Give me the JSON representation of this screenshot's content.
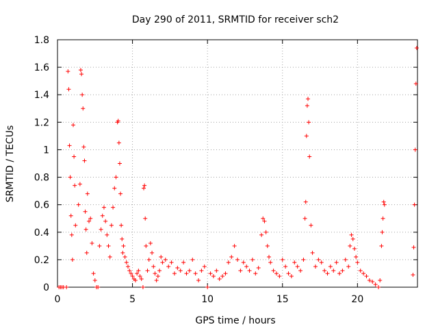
{
  "chart_data": {
    "type": "scatter",
    "title": "Day 290 of 2011, SRMTID for receiver sch2",
    "xlabel": "GPS time / hours",
    "ylabel": "SRMTID / TECUs",
    "xlim": [
      0,
      24
    ],
    "ylim": [
      0,
      1.8
    ],
    "xticks": [
      0,
      5,
      10,
      15,
      20
    ],
    "yticks": [
      0,
      0.2,
      0.4,
      0.6,
      0.8,
      1,
      1.2,
      1.4,
      1.6,
      1.8
    ],
    "ytick_labels": [
      "0",
      "0.2",
      "0.4",
      "0.6",
      "0.8",
      "1",
      "1.2",
      "1.4",
      "1.6",
      "1.8"
    ],
    "grid": true,
    "marker": "+",
    "color": "#ff0000",
    "x": [
      0.1,
      0.2,
      0.3,
      0.4,
      0.6,
      0.7,
      0.75,
      0.8,
      0.85,
      0.9,
      0.95,
      1.0,
      1.05,
      1.1,
      1.15,
      1.2,
      1.4,
      1.5,
      1.55,
      1.6,
      1.65,
      1.7,
      1.75,
      1.8,
      1.85,
      1.9,
      1.95,
      2.0,
      2.1,
      2.2,
      2.3,
      2.4,
      2.5,
      2.6,
      2.7,
      2.8,
      2.9,
      3.0,
      3.1,
      3.2,
      3.3,
      3.4,
      3.5,
      3.6,
      3.7,
      3.8,
      3.9,
      4.0,
      4.05,
      4.1,
      4.15,
      4.2,
      4.25,
      4.3,
      4.35,
      4.4,
      4.5,
      4.6,
      4.7,
      4.8,
      4.9,
      5.0,
      5.1,
      5.2,
      5.3,
      5.4,
      5.5,
      5.6,
      5.7,
      5.75,
      5.8,
      5.85,
      5.9,
      6.0,
      6.1,
      6.2,
      6.3,
      6.4,
      6.5,
      6.6,
      6.7,
      6.8,
      6.9,
      7.0,
      7.2,
      7.4,
      7.6,
      7.8,
      8.0,
      8.2,
      8.4,
      8.6,
      8.8,
      9.0,
      9.2,
      9.4,
      9.6,
      9.8,
      10.0,
      10.2,
      10.4,
      10.6,
      10.8,
      11.0,
      11.2,
      11.4,
      11.6,
      11.8,
      12.0,
      12.2,
      12.4,
      12.6,
      12.8,
      13.0,
      13.2,
      13.4,
      13.6,
      13.7,
      13.8,
      13.9,
      14.0,
      14.1,
      14.2,
      14.4,
      14.6,
      14.8,
      15.0,
      15.2,
      15.4,
      15.6,
      15.8,
      16.0,
      16.2,
      16.4,
      16.5,
      16.55,
      16.6,
      16.65,
      16.7,
      16.75,
      16.8,
      16.9,
      17.0,
      17.2,
      17.4,
      17.6,
      17.8,
      18.0,
      18.2,
      18.4,
      18.6,
      18.8,
      19.0,
      19.2,
      19.4,
      19.5,
      19.6,
      19.7,
      19.8,
      19.9,
      20.0,
      20.2,
      20.4,
      20.6,
      20.8,
      21.0,
      21.2,
      21.4,
      21.5,
      21.6,
      21.65,
      21.7,
      21.75,
      21.8,
      23.7,
      23.75,
      23.8,
      23.85,
      23.9,
      23.95
    ],
    "y": [
      0.0,
      0.0,
      0.0,
      0.0,
      0.0,
      1.57,
      1.44,
      1.03,
      0.8,
      0.52,
      0.38,
      0.2,
      1.18,
      0.95,
      0.74,
      0.45,
      0.6,
      0.75,
      1.58,
      1.55,
      1.4,
      1.3,
      1.02,
      0.92,
      0.55,
      0.42,
      0.25,
      0.68,
      0.48,
      0.5,
      0.32,
      0.1,
      0.05,
      0.0,
      0.0,
      0.3,
      0.42,
      0.52,
      0.58,
      0.48,
      0.38,
      0.3,
      0.22,
      0.45,
      0.58,
      0.72,
      0.8,
      1.2,
      1.21,
      1.05,
      0.9,
      0.68,
      0.45,
      0.35,
      0.25,
      0.3,
      0.22,
      0.18,
      0.15,
      0.12,
      0.1,
      0.08,
      0.06,
      0.05,
      0.1,
      0.12,
      0.08,
      0.06,
      0.0,
      0.72,
      0.74,
      0.5,
      0.3,
      0.12,
      0.2,
      0.32,
      0.25,
      0.15,
      0.1,
      0.05,
      0.08,
      0.12,
      0.22,
      0.18,
      0.2,
      0.15,
      0.18,
      0.1,
      0.14,
      0.12,
      0.18,
      0.1,
      0.12,
      0.2,
      0.1,
      0.05,
      0.12,
      0.15,
      0.0,
      0.1,
      0.08,
      0.12,
      0.06,
      0.08,
      0.1,
      0.18,
      0.22,
      0.3,
      0.2,
      0.12,
      0.18,
      0.15,
      0.12,
      0.2,
      0.1,
      0.14,
      0.38,
      0.5,
      0.48,
      0.4,
      0.3,
      0.22,
      0.18,
      0.12,
      0.1,
      0.08,
      0.2,
      0.15,
      0.1,
      0.08,
      0.18,
      0.15,
      0.12,
      0.2,
      0.5,
      0.62,
      1.1,
      1.32,
      1.37,
      1.2,
      0.95,
      0.45,
      0.25,
      0.15,
      0.2,
      0.18,
      0.12,
      0.1,
      0.15,
      0.12,
      0.18,
      0.1,
      0.12,
      0.2,
      0.15,
      0.3,
      0.38,
      0.35,
      0.28,
      0.22,
      0.18,
      0.12,
      0.1,
      0.08,
      0.05,
      0.04,
      0.02,
      0.0,
      0.05,
      0.3,
      0.4,
      0.5,
      0.62,
      0.6,
      0.09,
      0.29,
      0.6,
      1.0,
      1.48,
      1.74
    ]
  }
}
